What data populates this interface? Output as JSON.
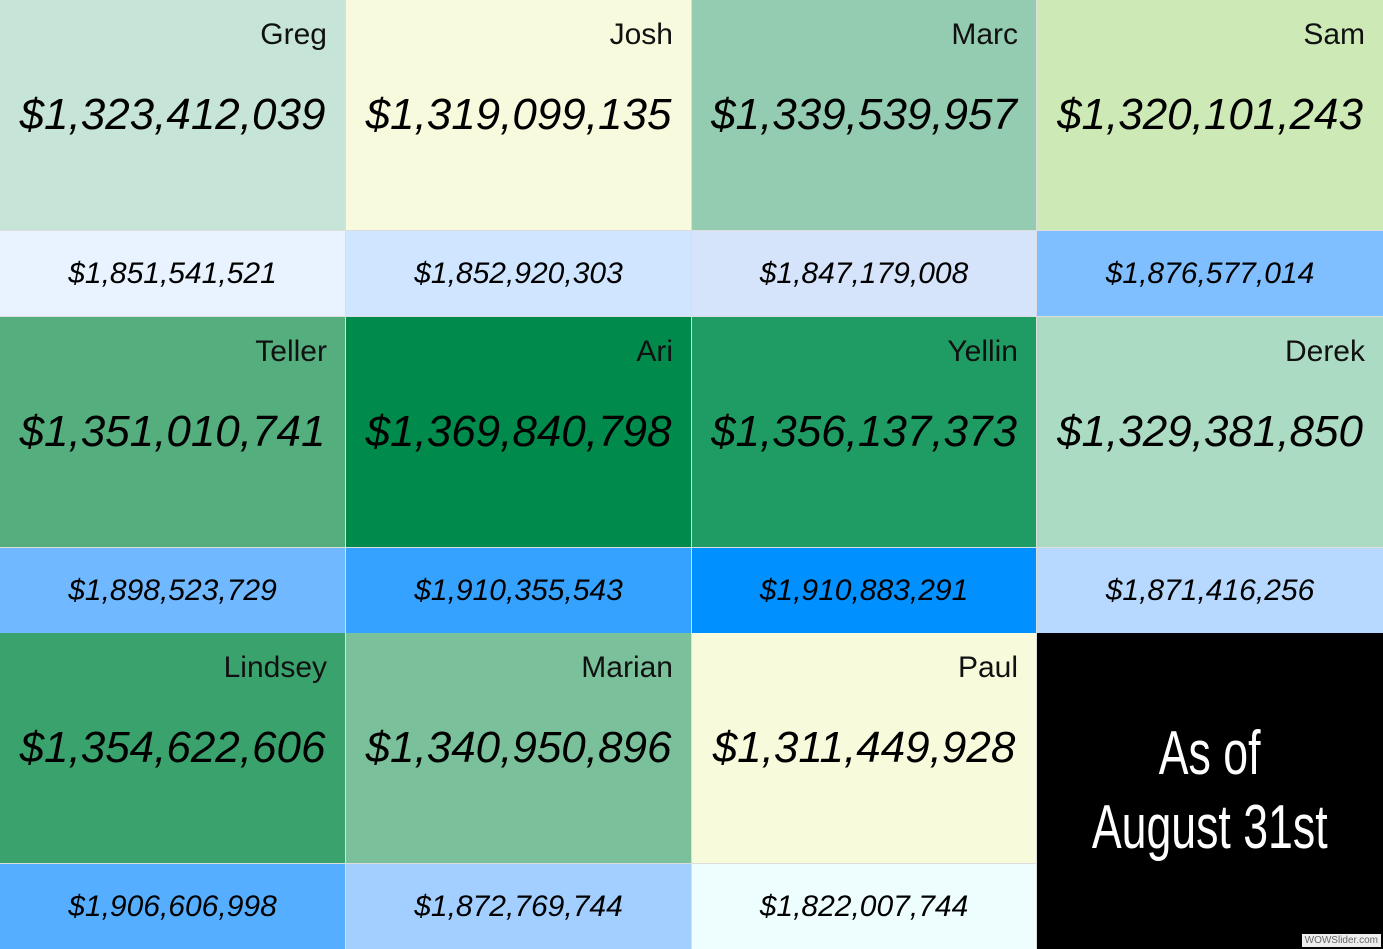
{
  "cells": [
    {
      "name": "Greg",
      "amount": "$1,323,412,039",
      "subtotal": "$1,851,541,521",
      "color": "#c6e5d8",
      "subtotal_color": "#e8f3ff"
    },
    {
      "name": "Josh",
      "amount": "$1,319,099,135",
      "subtotal": "$1,852,920,303",
      "color": "#f8fadd",
      "subtotal_color": "#d0e5ff"
    },
    {
      "name": "Marc",
      "amount": "$1,339,539,957",
      "subtotal": "$1,847,179,008",
      "color": "#93ccb1",
      "subtotal_color": "#d6e4fb"
    },
    {
      "name": "Sam",
      "amount": "$1,320,101,243",
      "subtotal": "$1,876,577,014",
      "color": "#cde9b6",
      "subtotal_color": "#80bfff"
    },
    {
      "name": "Teller",
      "amount": "$1,351,010,741",
      "subtotal": "$1,898,523,729",
      "color": "#55ae7e",
      "subtotal_color": "#70b8ff"
    },
    {
      "name": "Ari",
      "amount": "$1,369,840,798",
      "subtotal": "$1,910,355,543",
      "color": "#008a4b",
      "subtotal_color": "#35a2ff"
    },
    {
      "name": "Yellin",
      "amount": "$1,356,137,373",
      "subtotal": "$1,910,883,291",
      "color": "#1f9c64",
      "subtotal_color": "#0090ff"
    },
    {
      "name": "Derek",
      "amount": "$1,329,381,850",
      "subtotal": "$1,871,416,256",
      "color": "#acdbc3",
      "subtotal_color": "#b7d9ff"
    },
    {
      "name": "Lindsey",
      "amount": "$1,354,622,606",
      "subtotal": "$1,906,606,998",
      "color": "#3aa26d",
      "subtotal_color": "#55aeff"
    },
    {
      "name": "Marian",
      "amount": "$1,340,950,896",
      "subtotal": "$1,872,769,744",
      "color": "#79c09b",
      "subtotal_color": "#a2cfff"
    },
    {
      "name": "Paul",
      "amount": "$1,311,449,928",
      "subtotal": "$1,822,007,744",
      "color": "#f7fadb",
      "subtotal_color": "#eefeff"
    }
  ],
  "note": {
    "lines": [
      "As of",
      "August 31st"
    ]
  },
  "watermark": "WOWSlider.com"
}
